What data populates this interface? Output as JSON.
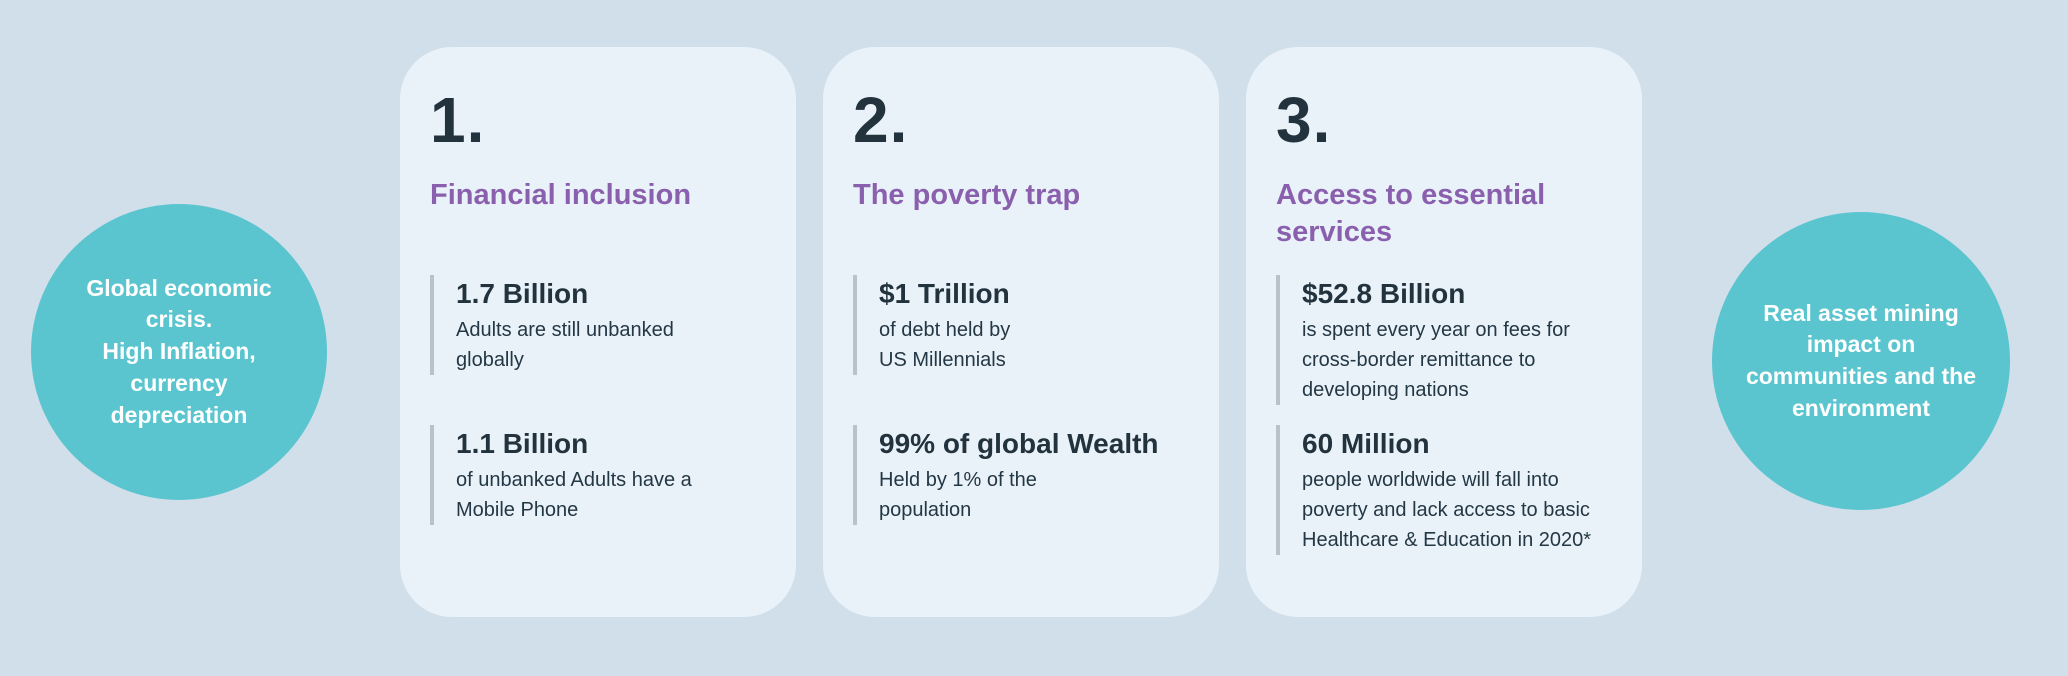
{
  "colors": {
    "page_background": "#D1DFEB",
    "card_background": "#E9F2F9",
    "circle_teal": "#5BC5CF",
    "heading_purple": "#8A5FAD",
    "dark_text": "#22333E",
    "divider_gray": "#B9C2C9"
  },
  "left_circle": {
    "text": "Global economic\ncrisis.\nHigh Inflation,\ncurrency\ndepreciation"
  },
  "right_circle": {
    "text": "Real asset  mining\nimpact on\ncommunities and the\nenvironment"
  },
  "cards": [
    {
      "number": "1.",
      "heading": "Financial inclusion",
      "stats": [
        {
          "value": "1.7 Billion",
          "description": "Adults are still unbanked\nglobally"
        },
        {
          "value": "1.1 Billion",
          "description": "of unbanked Adults have a\nMobile Phone"
        }
      ]
    },
    {
      "number": "2.",
      "heading": "The poverty trap",
      "stats": [
        {
          "value": "$1 Trillion",
          "description": "of debt held by\nUS Millennials"
        },
        {
          "value": "99% of global Wealth",
          "description": "Held by 1% of the\npopulation"
        }
      ]
    },
    {
      "number": "3.",
      "heading": "Access to essential services",
      "stats": [
        {
          "value": "$52.8 Billion",
          "description": "is spent every year on fees for\ncross-border remittance to\ndeveloping nations"
        },
        {
          "value": "60 Million",
          "description": "people worldwide will fall into\npoverty and lack access to basic\nHealthcare & Education in 2020*"
        }
      ]
    }
  ]
}
